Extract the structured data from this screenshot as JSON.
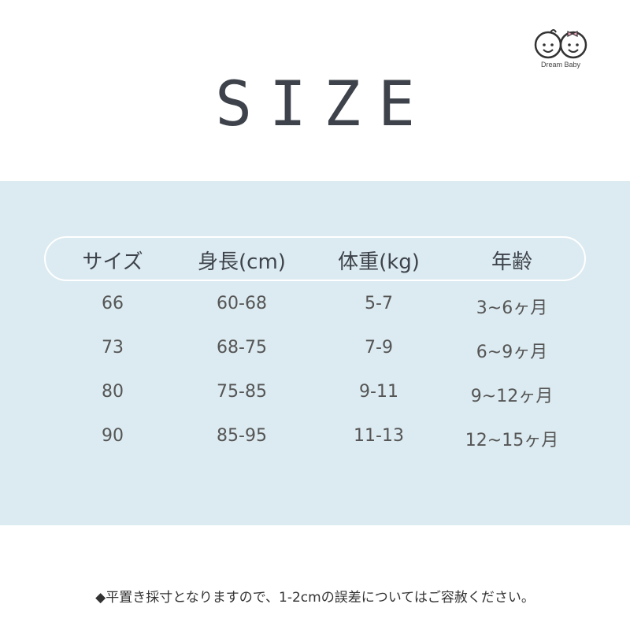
{
  "logo": {
    "text": "Dream Baby"
  },
  "title": "SIZE",
  "table": {
    "headers": [
      "サイズ",
      "身長(cm)",
      "体重(kg)",
      "年齢"
    ],
    "rows": [
      [
        "66",
        "60-68",
        "5-7",
        "3~6ヶ月"
      ],
      [
        "73",
        "68-75",
        "7-9",
        "6~9ヶ月"
      ],
      [
        "80",
        "75-85",
        "9-11",
        "9~12ヶ月"
      ],
      [
        "90",
        "85-95",
        "11-13",
        "12~15ヶ月"
      ]
    ]
  },
  "note": "◆平置き採寸となりますので、1-2cmの誤差についてはご容赦ください。",
  "colors": {
    "band": "#dcebf1",
    "text": "#3e434b",
    "bow": "#f3a6c0"
  }
}
